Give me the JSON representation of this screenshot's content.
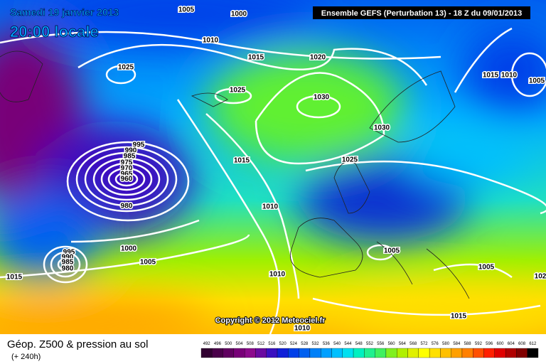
{
  "header": {
    "date": "Samedi 19 janvier 2013",
    "time": "20:00 locale",
    "model": "Ensemble GEFS (Perturbation 13)  -  18 Z du 09/01/2013"
  },
  "copyright": "Copyright © 2012 Meteociel.fr",
  "isobar_labels": [
    "1005",
    "1000",
    "1010",
    "1015",
    "1020",
    "1025",
    "1025",
    "1030",
    "1030",
    "1025",
    "1015",
    "1010",
    "995",
    "990",
    "985",
    "975",
    "970",
    "965",
    "960",
    "980",
    "1000",
    "1005",
    "995",
    "990",
    "985",
    "980",
    "1015",
    "1010",
    "1005",
    "1005",
    "1015",
    "1010",
    "1015",
    "1010",
    "1005",
    "102"
  ],
  "footer": {
    "title": "Géop. Z500 & pression au sol",
    "subtitle": "(+ 240h)"
  },
  "scale": {
    "labels": [
      "492",
      "496",
      "500",
      "504",
      "508",
      "512",
      "516",
      "520",
      "524",
      "528",
      "532",
      "536",
      "540",
      "544",
      "548",
      "552",
      "556",
      "560",
      "564",
      "568",
      "572",
      "576",
      "580",
      "584",
      "588",
      "592",
      "596",
      "600",
      "604",
      "608",
      "612"
    ],
    "colors": [
      "#300030",
      "#4a004a",
      "#600060",
      "#780078",
      "#8c0a8c",
      "#6a0aa0",
      "#3a10c0",
      "#1020d8",
      "#0040e8",
      "#0060f0",
      "#0080f8",
      "#00a0ff",
      "#00c0ff",
      "#00e0f0",
      "#00f0c0",
      "#20f090",
      "#40f060",
      "#80f020",
      "#b0f000",
      "#e0f000",
      "#ffff00",
      "#ffe000",
      "#ffc000",
      "#ffa000",
      "#ff8000",
      "#ff5000",
      "#ff2000",
      "#e00000",
      "#b00000",
      "#800000",
      "#000000"
    ]
  }
}
